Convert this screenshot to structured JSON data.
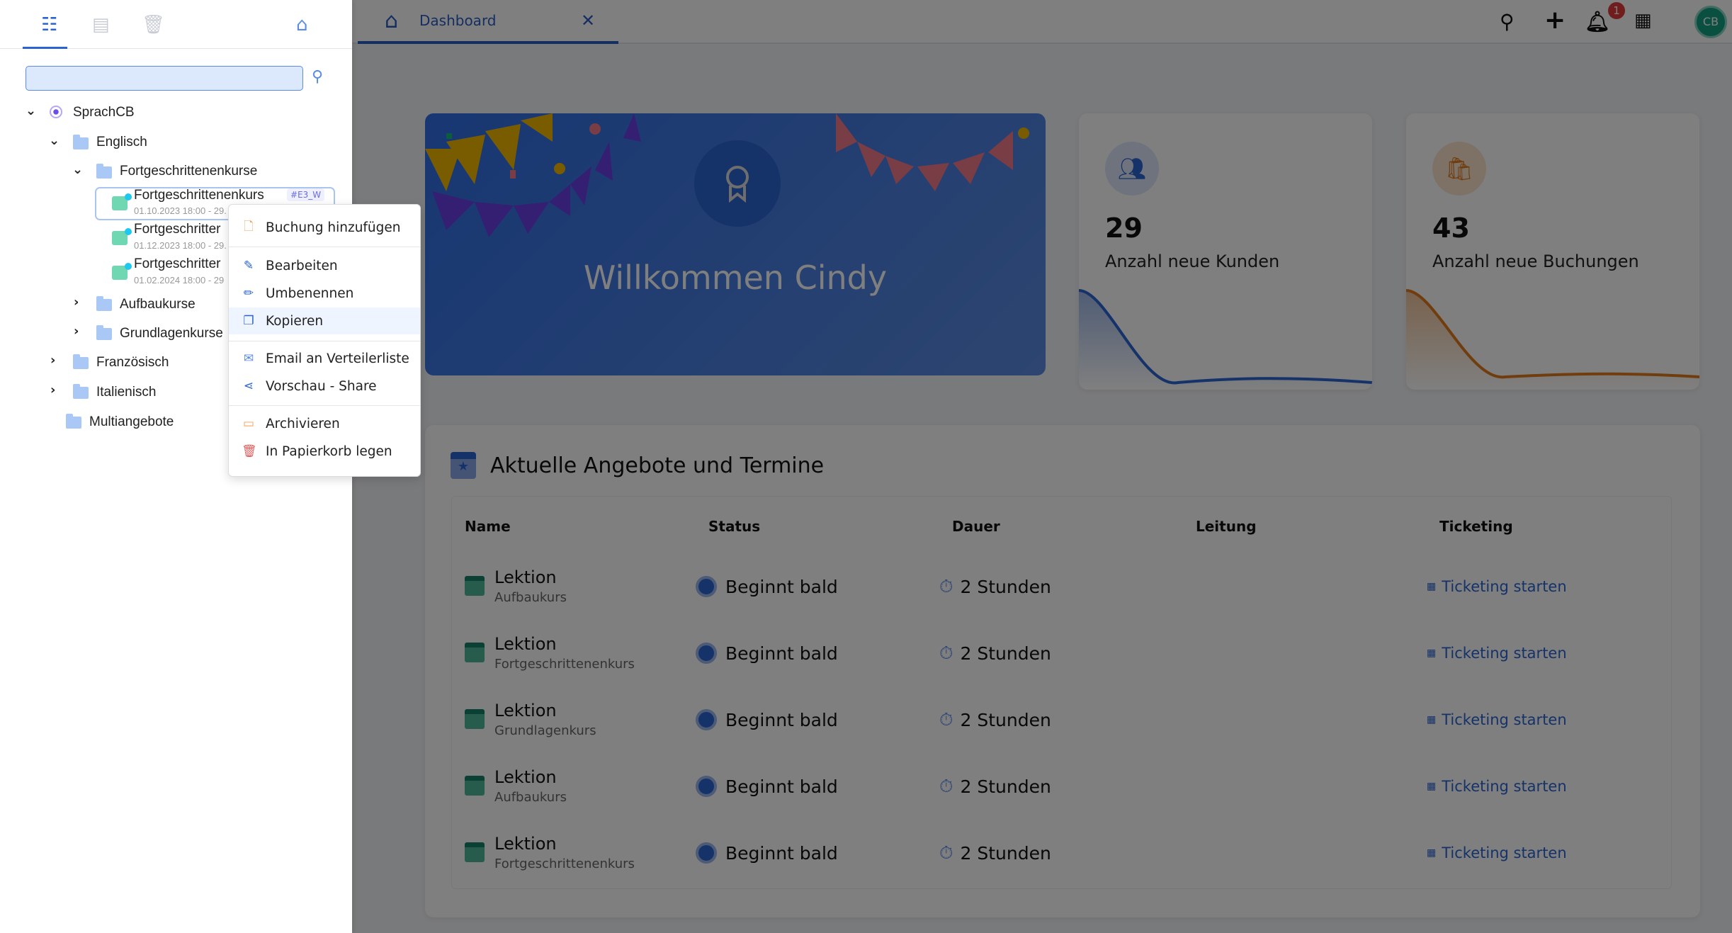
{
  "sidebar": {
    "search_placeholder": "",
    "tree": [
      {
        "label": "SprachCB"
      },
      {
        "label": "Englisch"
      },
      {
        "label": "Fortgeschrittenenkurse"
      },
      {
        "label": "Fortgeschrittenenkurs",
        "tag": "#E3_W",
        "date": "01.10.2023 18:00 - 29."
      },
      {
        "label": "Fortgeschritter",
        "date": "01.12.2023 18:00 - 29."
      },
      {
        "label": "Fortgeschritter",
        "date": "01.02.2024 18:00 - 29"
      },
      {
        "label": "Aufbaukurse"
      },
      {
        "label": "Grundlagenkurse"
      },
      {
        "label": "Französisch"
      },
      {
        "label": "Italienisch"
      },
      {
        "label": "Multiangebote"
      }
    ]
  },
  "context_menu": [
    "Buchung hinzufügen",
    "Bearbeiten",
    "Umbenennen",
    "Kopieren",
    "Email an Verteilerliste",
    "Vorschau - Share",
    "Archivieren",
    "In Papierkorb legen"
  ],
  "topbar": {
    "tab": "Dashboard",
    "notifications": "1",
    "avatar": "CB"
  },
  "welcome": {
    "title": "Willkommen Cindy"
  },
  "stats": [
    {
      "value": "29",
      "label": "Anzahl neue Kunden",
      "color": "#2a64d2"
    },
    {
      "value": "43",
      "label": "Anzahl neue Buchungen",
      "color": "#e07b1f"
    }
  ],
  "section": {
    "title": "Aktuelle Angebote und Termine",
    "columns": [
      "Name",
      "Status",
      "Dauer",
      "Leitung",
      "Ticketing"
    ],
    "rows": [
      {
        "name": "Lektion",
        "sub": "Aufbaukurs",
        "status": "Beginnt bald",
        "duration": "2 Stunden",
        "lead": "",
        "ticket": "Ticketing starten"
      },
      {
        "name": "Lektion",
        "sub": "Fortgeschrittenenkurs",
        "status": "Beginnt bald",
        "duration": "2 Stunden",
        "lead": "",
        "ticket": "Ticketing starten"
      },
      {
        "name": "Lektion",
        "sub": "Grundlagenkurs",
        "status": "Beginnt bald",
        "duration": "2 Stunden",
        "lead": "",
        "ticket": "Ticketing starten"
      },
      {
        "name": "Lektion",
        "sub": "Aufbaukurs",
        "status": "Beginnt bald",
        "duration": "2 Stunden",
        "lead": "",
        "ticket": "Ticketing starten"
      },
      {
        "name": "Lektion",
        "sub": "Fortgeschrittenenkurs",
        "status": "Beginnt bald",
        "duration": "2 Stunden",
        "lead": "",
        "ticket": "Ticketing starten"
      }
    ]
  }
}
